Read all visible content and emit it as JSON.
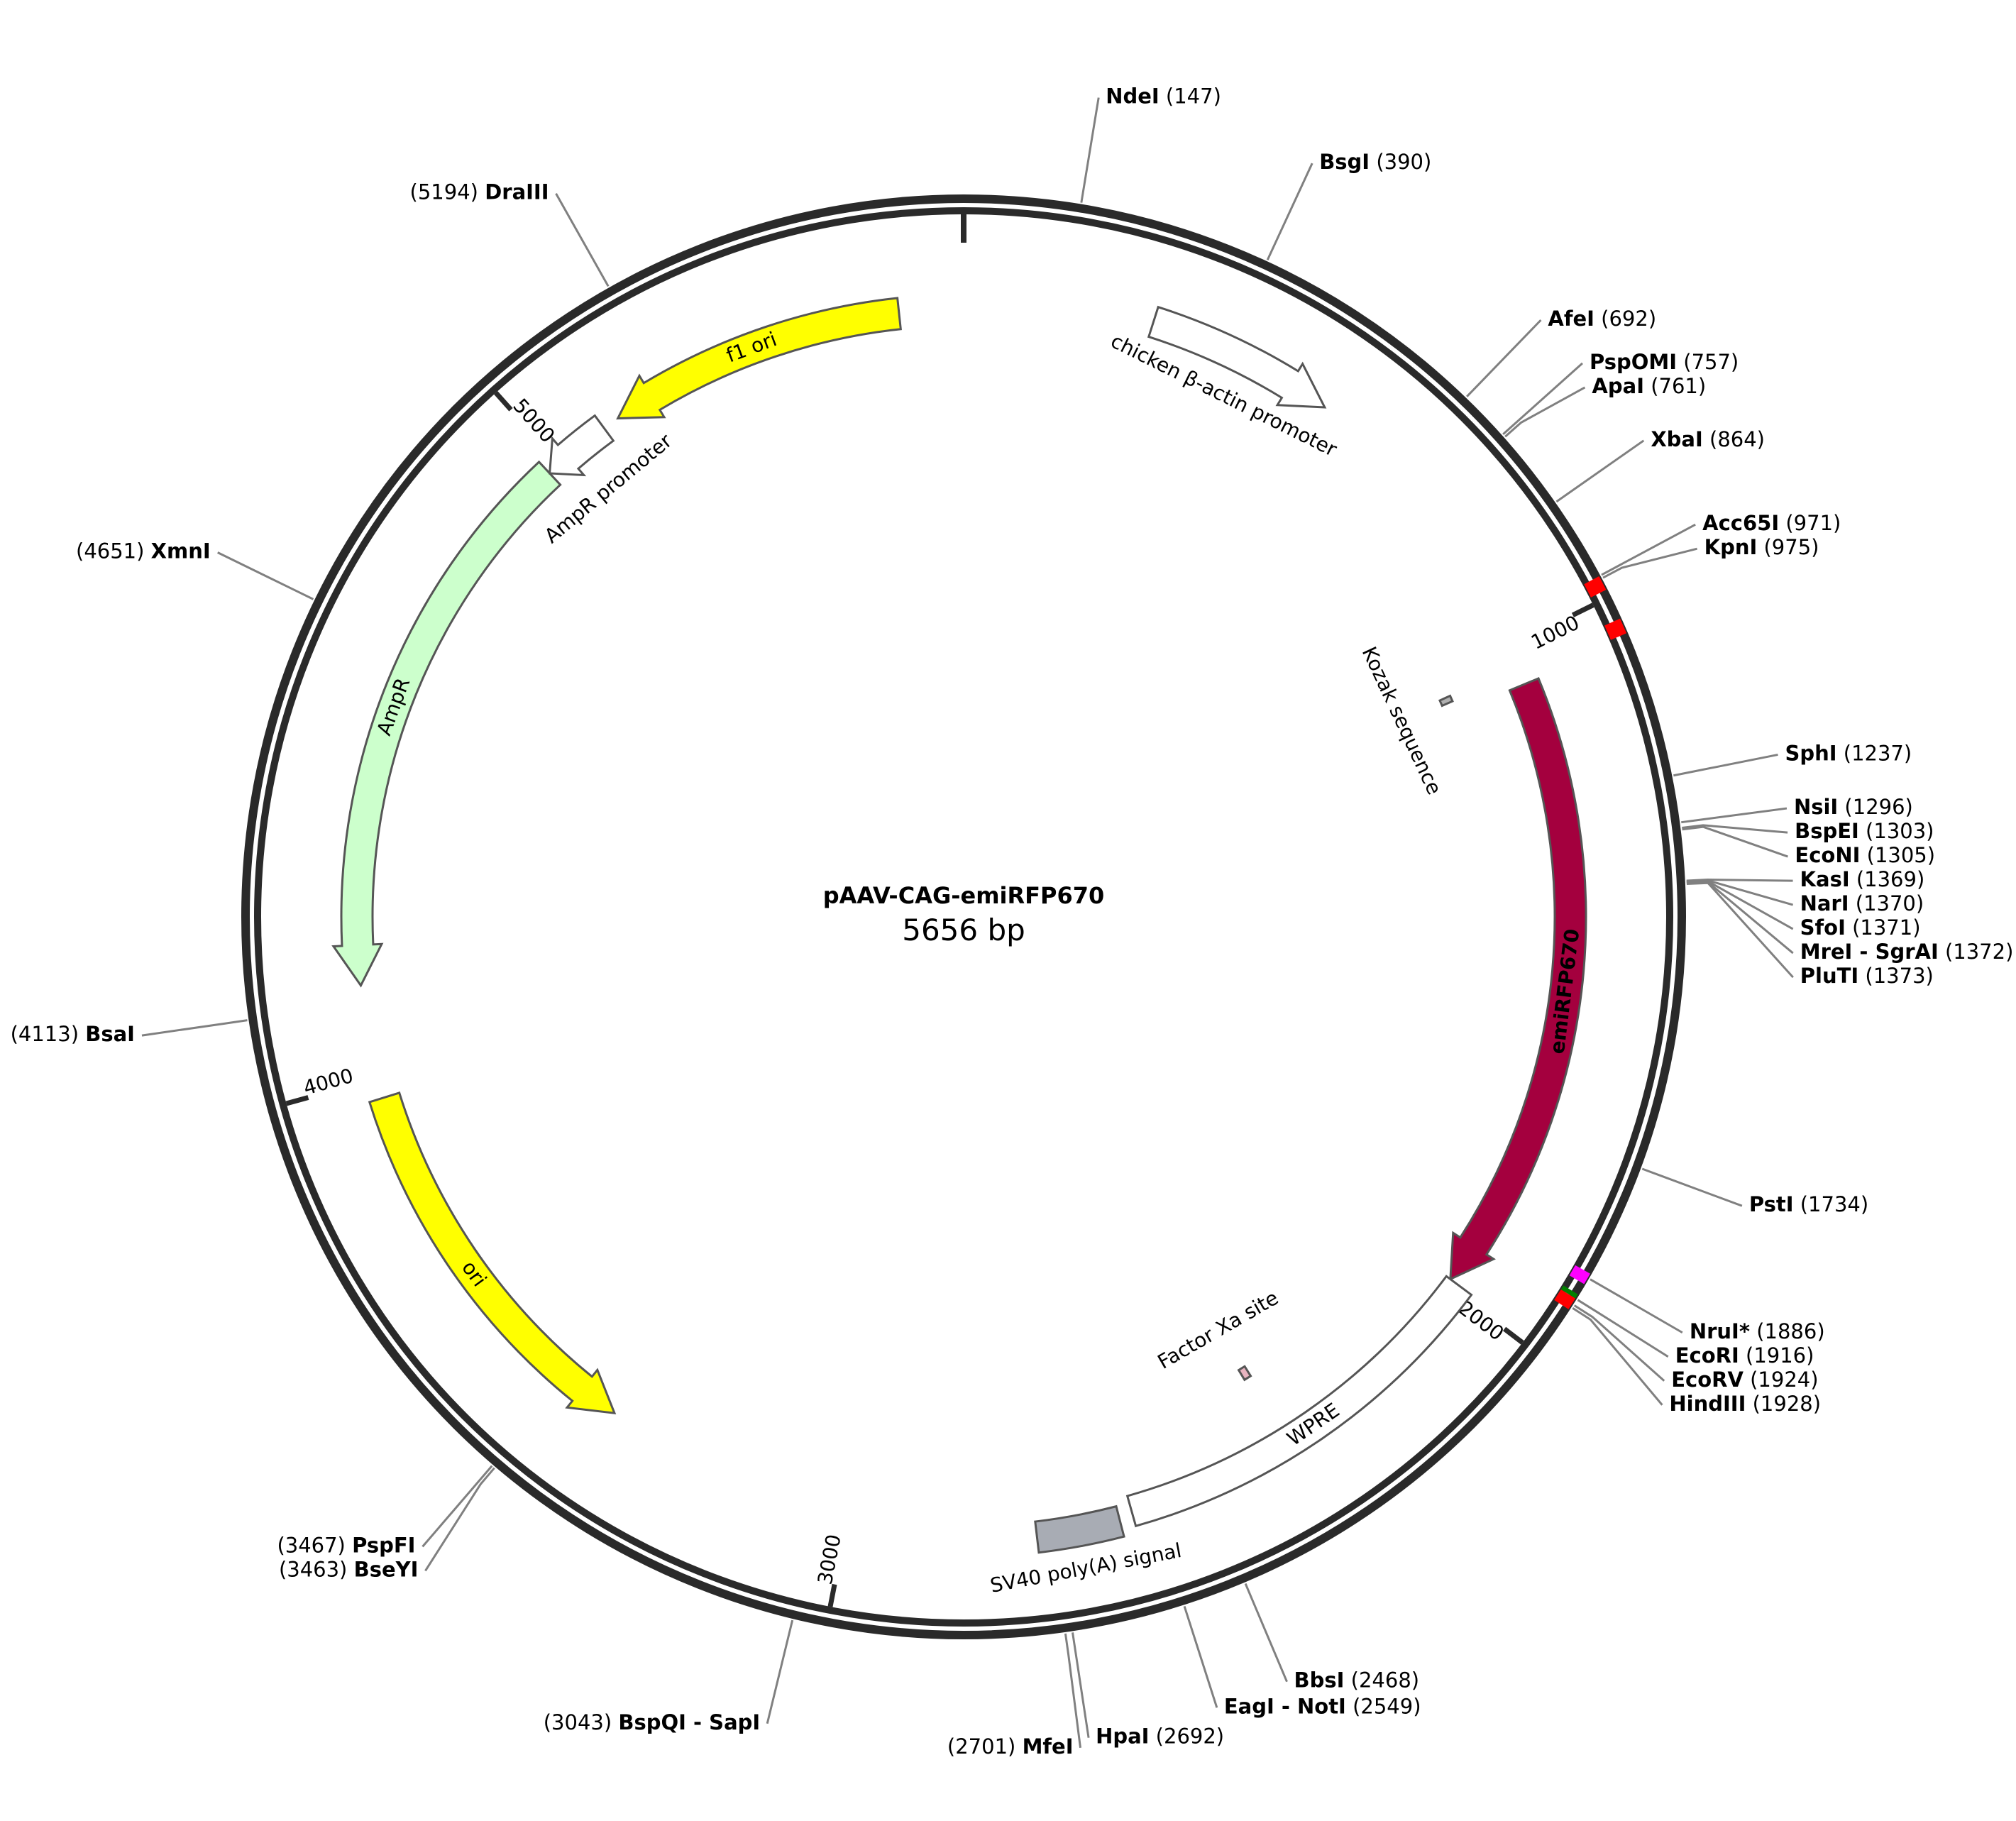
{
  "plasmid": {
    "name": "pAAV-CAG-emiRFP670",
    "size": "5656 bp",
    "length": 5656
  },
  "features": [
    {
      "name": "chicken β-actin promoter",
      "start": 278,
      "end": 555,
      "dir": 1,
      "fill": "#ffffff",
      "label": "outside"
    },
    {
      "name": "Kozak sequence",
      "start": 1030,
      "end": 1040,
      "dir": 0,
      "fill": "#b0b0b0",
      "label": "inside"
    },
    {
      "name": "emiRFP670",
      "start": 1060,
      "end": 1990,
      "dir": 1,
      "fill": "#a4003e",
      "label": "on"
    },
    {
      "name": "WPRE",
      "start": 1990,
      "end": 2580,
      "dir": 0,
      "fill": "#ffffff",
      "label": "on"
    },
    {
      "name": "Factor Xa site",
      "start": 2325,
      "end": 2337,
      "dir": 0,
      "fill": "#e8b4c0",
      "label": "inside"
    },
    {
      "name": "SV40 poly(A) signal",
      "start": 2600,
      "end": 2722,
      "dir": 0,
      "fill": "#a8acb4",
      "label": "outside"
    },
    {
      "name": "ori",
      "start": 3380,
      "end": 3970,
      "dir": -1,
      "fill": "#ffff00",
      "label": "on"
    },
    {
      "name": "AmpR",
      "start": 4140,
      "end": 4980,
      "dir": -1,
      "fill": "#ccffcc",
      "label": "on"
    },
    {
      "name": "AmpR promoter",
      "start": 4980,
      "end": 5085,
      "dir": -1,
      "fill": "#ffffff",
      "label": "outside"
    },
    {
      "name": "f1 ori",
      "start": 5110,
      "end": 5560,
      "dir": -1,
      "fill": "#ffff00",
      "label": "on"
    }
  ],
  "ticks": [
    {
      "pos": 1000,
      "label": "1000"
    },
    {
      "pos": 2000,
      "label": "2000"
    },
    {
      "pos": 3000,
      "label": "3000"
    },
    {
      "pos": 4000,
      "label": "4000"
    },
    {
      "pos": 5000,
      "label": "5000"
    }
  ],
  "sites": [
    {
      "name": "NdeI",
      "pos": "147",
      "cut": 147,
      "side": "right"
    },
    {
      "name": "BsgI",
      "pos": "390",
      "cut": 390,
      "side": "right"
    },
    {
      "name": "AfeI",
      "pos": "692",
      "cut": 692,
      "side": "right"
    },
    {
      "name": "PspOMI",
      "pos": "757",
      "cut": 757,
      "side": "right"
    },
    {
      "name": "ApaI",
      "pos": "761",
      "cut": 761,
      "side": "right"
    },
    {
      "name": "XbaI",
      "pos": "864",
      "cut": 864,
      "side": "right"
    },
    {
      "name": "Acc65I",
      "pos": "971",
      "cut": 971,
      "side": "right"
    },
    {
      "name": "KpnI",
      "pos": "975",
      "cut": 975,
      "side": "right"
    },
    {
      "name": "SphI",
      "pos": "1237",
      "cut": 1237,
      "side": "right"
    },
    {
      "name": "NsiI",
      "pos": "1296",
      "cut": 1296,
      "side": "right"
    },
    {
      "name": "BspEI",
      "pos": "1303",
      "cut": 1303,
      "side": "right"
    },
    {
      "name": "EcoNI",
      "pos": "1305",
      "cut": 1305,
      "side": "right"
    },
    {
      "name": "KasI",
      "pos": "1369",
      "cut": 1369,
      "side": "right"
    },
    {
      "name": "NarI",
      "pos": "1370",
      "cut": 1370,
      "side": "right"
    },
    {
      "name": "SfoI",
      "pos": "1371",
      "cut": 1371,
      "side": "right"
    },
    {
      "name": "MreI - SgrAI",
      "pos": "1372",
      "cut": 1372,
      "side": "right"
    },
    {
      "name": "PluTI",
      "pos": "1373",
      "cut": 1373,
      "side": "right"
    },
    {
      "name": "PstI",
      "pos": "1734",
      "cut": 1734,
      "side": "right"
    },
    {
      "name": "NruI*",
      "pos": "1886",
      "cut": 1886,
      "side": "right"
    },
    {
      "name": "EcoRI",
      "pos": "1916",
      "cut": 1916,
      "side": "right"
    },
    {
      "name": "EcoRV",
      "pos": "1924",
      "cut": 1924,
      "side": "right"
    },
    {
      "name": "HindIII",
      "pos": "1928",
      "cut": 1928,
      "side": "right"
    },
    {
      "name": "BbsI",
      "pos": "2468",
      "cut": 2468,
      "side": "right"
    },
    {
      "name": "EagI - NotI",
      "pos": "2549",
      "cut": 2549,
      "side": "right"
    },
    {
      "name": "HpaI",
      "pos": "2692",
      "cut": 2692,
      "side": "right"
    },
    {
      "name": "MfeI",
      "pos": "2701",
      "cut": 2701,
      "side": "left"
    },
    {
      "name": "BspQI - SapI",
      "pos": "3043",
      "cut": 3043,
      "side": "left"
    },
    {
      "name": "BseYI",
      "pos": "3463",
      "cut": 3463,
      "side": "left"
    },
    {
      "name": "PspFI",
      "pos": "3467",
      "cut": 3467,
      "side": "left"
    },
    {
      "name": "BsaI",
      "pos": "4113",
      "cut": 4113,
      "side": "left"
    },
    {
      "name": "XmnI",
      "pos": "4651",
      "cut": 4651,
      "side": "left"
    },
    {
      "name": "DraIII",
      "pos": "5194",
      "cut": 5194,
      "side": "left"
    }
  ],
  "backbone_marks": [
    {
      "start": 971,
      "end": 990,
      "color": "#ff0000"
    },
    {
      "start": 1030,
      "end": 1050,
      "color": "#ff0000"
    },
    {
      "start": 1880,
      "end": 1895,
      "color": "#ff00ff"
    },
    {
      "start": 1910,
      "end": 1916,
      "color": "#008000"
    },
    {
      "start": 1916,
      "end": 1932,
      "color": "#ff0000"
    }
  ]
}
